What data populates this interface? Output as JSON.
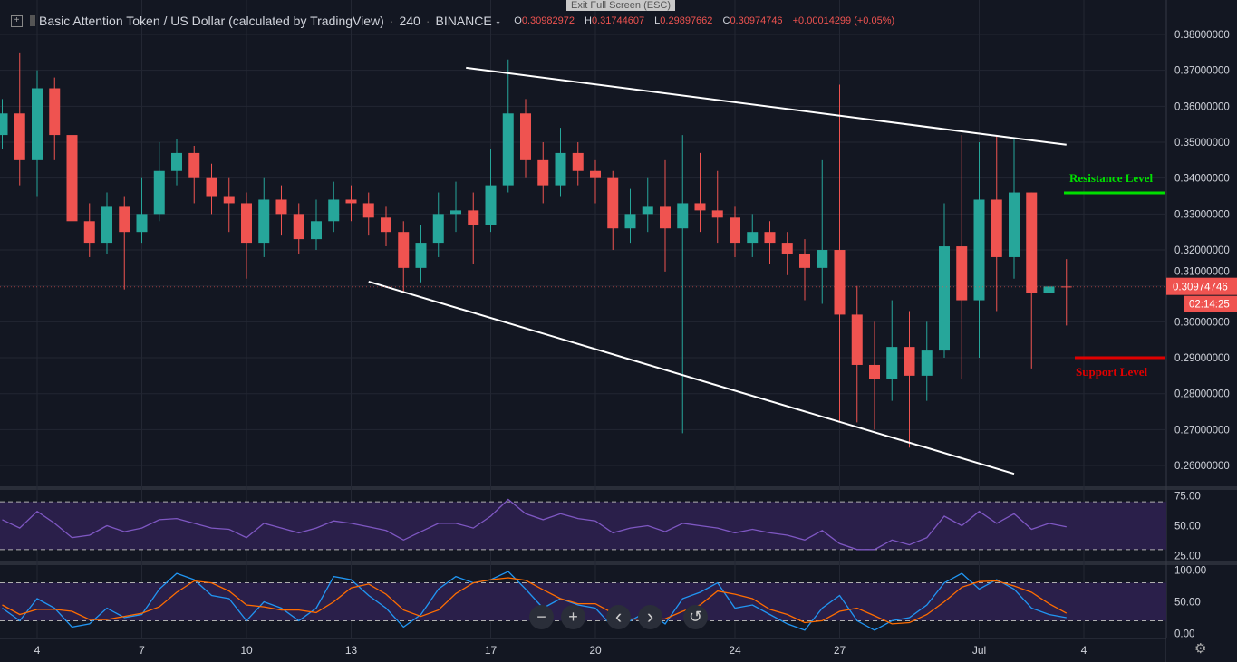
{
  "header": {
    "title": "Basic Attention Token / US Dollar (calculated by TradingView)",
    "interval": "240",
    "exchange": "BINANCE",
    "o_label": "O",
    "o": "0.30982972",
    "h_label": "H",
    "h": "0.31744607",
    "l_label": "L",
    "l": "0.29897662",
    "c_label": "C",
    "c": "0.30974746",
    "change": "+0.00014299 (+0.05%)",
    "exit_fullscreen": "Exit Full Screen (ESC)"
  },
  "price_tag": {
    "value": "0.30974746",
    "countdown": "02:14:25",
    "color": "#ef5350"
  },
  "annotations": {
    "resistance_label": "Resistance Level",
    "resistance_price": 0.3359,
    "resistance_color": "#00e000",
    "support_label": "Support Level",
    "support_price": 0.29,
    "support_color": "#e00000"
  },
  "controls": {
    "zoom_out": "−",
    "zoom_in": "+",
    "scroll_left": "‹",
    "scroll_right": "›",
    "reset": "↺"
  },
  "chart_data": [
    {
      "type": "candlestick",
      "ylim": [
        0.254,
        0.388
      ],
      "yticks": [
        "0.38000000",
        "0.37000000",
        "0.36000000",
        "0.35000000",
        "0.34000000",
        "0.33000000",
        "0.32000000",
        "0.31000000",
        "0.30000000",
        "0.29000000",
        "0.28000000",
        "0.27000000",
        "0.26000000"
      ],
      "xticks": [
        {
          "label": "4",
          "date": "Jun 4"
        },
        {
          "label": "7",
          "date": "Jun 7"
        },
        {
          "label": "10",
          "date": "Jun 10"
        },
        {
          "label": "13",
          "date": "Jun 13"
        },
        {
          "label": "17",
          "date": "Jun 17"
        },
        {
          "label": "20",
          "date": "Jun 20"
        },
        {
          "label": "24",
          "date": "Jun 24"
        },
        {
          "label": "27",
          "date": "Jun 27"
        },
        {
          "label": "Jul",
          "date": "Jul 1"
        },
        {
          "label": "4",
          "date": "Jul 4"
        }
      ],
      "start": "Jun 3 00:00",
      "step_hours": 12,
      "up_color": "#26a69a",
      "down_color": "#ef5350",
      "open": [
        0.352,
        0.358,
        0.345,
        0.365,
        0.352,
        0.328,
        0.322,
        0.332,
        0.325,
        0.33,
        0.342,
        0.347,
        0.34,
        0.335,
        0.333,
        0.322,
        0.334,
        0.33,
        0.323,
        0.328,
        0.334,
        0.333,
        0.329,
        0.325,
        0.315,
        0.322,
        0.33,
        0.331,
        0.327,
        0.338,
        0.358,
        0.345,
        0.338,
        0.347,
        0.342,
        0.34,
        0.326,
        0.33,
        0.332,
        0.326,
        0.333,
        0.331,
        0.329,
        0.322,
        0.325,
        0.322,
        0.319,
        0.315,
        0.32,
        0.302,
        0.288,
        0.284,
        0.293,
        0.285,
        0.292,
        0.321,
        0.306,
        0.334,
        0.318,
        0.336,
        0.308,
        0.30982972
      ],
      "high": [
        0.362,
        0.375,
        0.37,
        0.368,
        0.356,
        0.333,
        0.336,
        0.335,
        0.34,
        0.35,
        0.351,
        0.349,
        0.344,
        0.34,
        0.336,
        0.34,
        0.338,
        0.333,
        0.334,
        0.339,
        0.338,
        0.336,
        0.332,
        0.328,
        0.327,
        0.336,
        0.339,
        0.336,
        0.348,
        0.373,
        0.362,
        0.35,
        0.354,
        0.35,
        0.345,
        0.342,
        0.337,
        0.34,
        0.345,
        0.352,
        0.347,
        0.342,
        0.332,
        0.33,
        0.328,
        0.325,
        0.323,
        0.345,
        0.366,
        0.31,
        0.3,
        0.306,
        0.303,
        0.3,
        0.333,
        0.352,
        0.35,
        0.352,
        0.351,
        0.336,
        0.336,
        0.31744607
      ],
      "low": [
        0.348,
        0.338,
        0.335,
        0.345,
        0.315,
        0.318,
        0.319,
        0.309,
        0.322,
        0.328,
        0.338,
        0.333,
        0.33,
        0.325,
        0.312,
        0.318,
        0.324,
        0.319,
        0.32,
        0.325,
        0.328,
        0.324,
        0.321,
        0.308,
        0.311,
        0.318,
        0.325,
        0.316,
        0.325,
        0.336,
        0.34,
        0.333,
        0.335,
        0.338,
        0.333,
        0.32,
        0.322,
        0.325,
        0.314,
        0.269,
        0.325,
        0.322,
        0.318,
        0.318,
        0.316,
        0.313,
        0.306,
        0.305,
        0.272,
        0.272,
        0.27,
        0.278,
        0.265,
        0.278,
        0.29,
        0.284,
        0.29,
        0.303,
        0.312,
        0.287,
        0.291,
        0.29897662
      ],
      "close": [
        0.358,
        0.345,
        0.365,
        0.352,
        0.328,
        0.322,
        0.332,
        0.325,
        0.33,
        0.342,
        0.347,
        0.34,
        0.335,
        0.333,
        0.322,
        0.334,
        0.33,
        0.323,
        0.328,
        0.334,
        0.333,
        0.329,
        0.325,
        0.315,
        0.322,
        0.33,
        0.331,
        0.327,
        0.338,
        0.358,
        0.345,
        0.338,
        0.347,
        0.342,
        0.34,
        0.326,
        0.33,
        0.332,
        0.326,
        0.333,
        0.331,
        0.329,
        0.322,
        0.325,
        0.322,
        0.319,
        0.315,
        0.32,
        0.302,
        0.288,
        0.284,
        0.293,
        0.285,
        0.292,
        0.321,
        0.306,
        0.334,
        0.318,
        0.336,
        0.308,
        0.30982972,
        0.30974746
      ],
      "trendlines": [
        {
          "from": {
            "time": "Jun 16 07:00",
            "price": 0.3707
          },
          "to": {
            "time": "Jul 3 12:00",
            "price": 0.3493
          },
          "color": "#ffffff"
        },
        {
          "from": {
            "time": "Jun 13 12:00",
            "price": 0.3112
          },
          "to": {
            "time": "Jul 2 00:00",
            "price": 0.2577
          },
          "color": "#ffffff"
        }
      ]
    },
    {
      "type": "line",
      "ylim": [
        20,
        80
      ],
      "yticks": [
        "75.00",
        "50.00",
        "25.00"
      ],
      "bands": [
        30,
        70
      ],
      "color": "#7e57c2",
      "band_color": "#2a1f4a",
      "values": [
        55,
        48,
        62,
        52,
        40,
        42,
        50,
        45,
        48,
        55,
        56,
        52,
        48,
        47,
        40,
        52,
        48,
        44,
        48,
        54,
        52,
        49,
        46,
        38,
        45,
        52,
        52,
        48,
        58,
        72,
        60,
        55,
        60,
        56,
        54,
        44,
        48,
        50,
        45,
        52,
        50,
        48,
        44,
        47,
        44,
        42,
        38,
        46,
        35,
        30,
        30,
        38,
        34,
        40,
        58,
        50,
        62,
        52,
        60,
        47,
        52,
        49
      ]
    },
    {
      "type": "line",
      "ylim": [
        -8,
        108
      ],
      "yticks": [
        "100.00",
        "50.00",
        "0.00"
      ],
      "bands": [
        20,
        80
      ],
      "series": [
        {
          "color": "#2196f3",
          "values": [
            40,
            20,
            55,
            40,
            10,
            15,
            40,
            25,
            30,
            70,
            95,
            85,
            60,
            55,
            20,
            50,
            40,
            20,
            40,
            90,
            85,
            60,
            40,
            10,
            30,
            70,
            90,
            80,
            85,
            98,
            70,
            40,
            55,
            45,
            40,
            10,
            20,
            35,
            15,
            55,
            65,
            80,
            40,
            45,
            30,
            15,
            5,
            40,
            60,
            20,
            5,
            20,
            25,
            45,
            80,
            95,
            70,
            85,
            70,
            40,
            30,
            25
          ]
        },
        {
          "color": "#ff6d00",
          "values": [
            45,
            30,
            38,
            38,
            35,
            22,
            22,
            27,
            32,
            42,
            65,
            83,
            80,
            67,
            45,
            42,
            37,
            37,
            33,
            50,
            72,
            78,
            62,
            37,
            27,
            37,
            63,
            80,
            85,
            88,
            84,
            69,
            55,
            47,
            47,
            32,
            23,
            22,
            23,
            35,
            45,
            67,
            62,
            55,
            38,
            30,
            17,
            20,
            35,
            40,
            28,
            15,
            17,
            30,
            50,
            73,
            82,
            83,
            75,
            65,
            47,
            32
          ]
        }
      ]
    }
  ]
}
